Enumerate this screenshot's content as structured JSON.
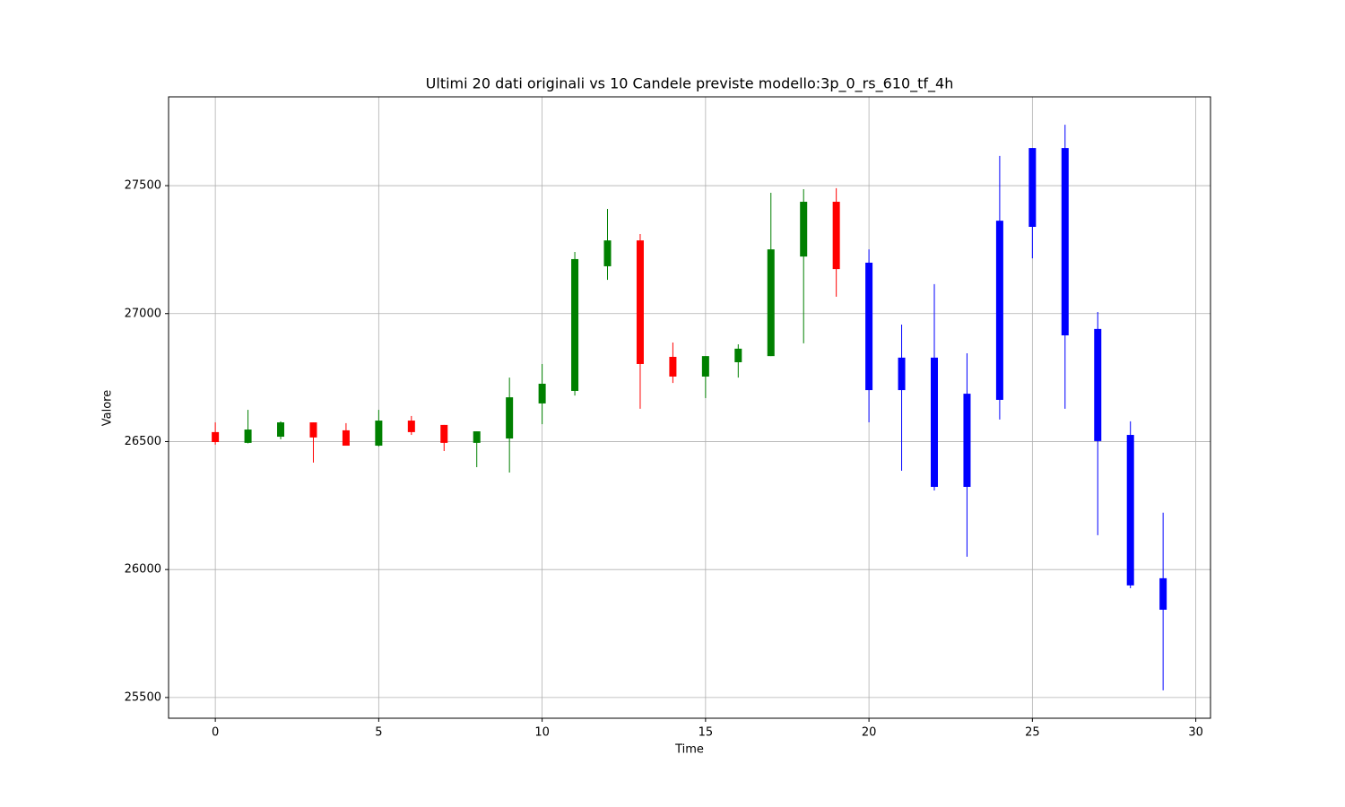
{
  "chart_data": {
    "type": "candlestick",
    "title": "Ultimi 20 dati originali vs 10 Candele previste modello:3p_0_rs_610_tf_4h",
    "x_label": "Time",
    "y_label": "Valore",
    "xlim": [
      -1.43,
      30.45
    ],
    "ylim": [
      25419,
      27847
    ],
    "xticks": [
      0,
      5,
      10,
      15,
      20,
      25,
      30
    ],
    "yticks": [
      25500,
      26000,
      26500,
      27000,
      27500
    ],
    "grid": true,
    "series": [
      {
        "up_color": "green",
        "down_color": "red",
        "x": [
          0,
          1,
          2,
          3,
          4,
          5,
          6,
          7,
          8,
          9,
          10,
          11,
          12,
          13,
          14,
          15,
          16,
          17,
          18,
          19
        ],
        "open": [
          26537,
          26495,
          26519,
          26575,
          26544,
          26484,
          26582,
          26565,
          26495,
          26512,
          26649,
          26698,
          27185,
          27286,
          26831,
          26754,
          26810,
          26834,
          27223,
          27437
        ],
        "high": [
          26575,
          26624,
          26579,
          26575,
          26572,
          26624,
          26600,
          26565,
          26540,
          26750,
          26803,
          27241,
          27409,
          27311,
          26887,
          26834,
          26880,
          27472,
          27486,
          27490
        ],
        "low": [
          26488,
          26493,
          26509,
          26418,
          26484,
          26481,
          26526,
          26463,
          26400,
          26379,
          26568,
          26680,
          27132,
          26628,
          26729,
          26670,
          26750,
          26834,
          26884,
          27066
        ],
        "close": [
          26498,
          26547,
          26575,
          26516,
          26484,
          26582,
          26537,
          26495,
          26540,
          26673,
          26726,
          27213,
          27286,
          26803,
          26754,
          26834,
          26863,
          27251,
          27437,
          27174
        ]
      },
      {
        "color": "blue",
        "x": [
          20,
          21,
          22,
          23,
          24,
          25,
          26,
          27,
          28,
          29
        ],
        "open": [
          27199,
          26701,
          26828,
          26323,
          26663,
          27339,
          27647,
          26940,
          26526,
          25966
        ],
        "high": [
          27251,
          26957,
          27115,
          26845,
          27616,
          27647,
          27738,
          27006,
          26579,
          26222
        ],
        "low": [
          26575,
          26386,
          26309,
          26050,
          26586,
          27216,
          26628,
          26134,
          25927,
          25528
        ],
        "close": [
          26701,
          26828,
          26323,
          26687,
          27363,
          27647,
          26915,
          26502,
          25938,
          25843
        ]
      }
    ]
  }
}
